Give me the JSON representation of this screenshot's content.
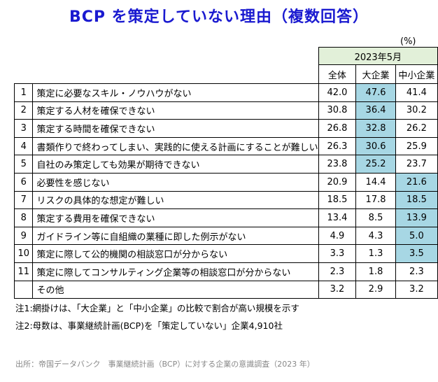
{
  "title": "BCP を策定していない理由（複数回答）",
  "unit": "(%)",
  "period": "2023年5月",
  "columns": [
    "全体",
    "大企業",
    "中小企業"
  ],
  "highlight_color": "#a7d7e4",
  "rows": [
    {
      "no": "1",
      "label": "策定に必要なスキル・ノウハウがない",
      "values": [
        "42.0",
        "47.6",
        "41.4"
      ],
      "highlight": [
        false,
        true,
        false
      ]
    },
    {
      "no": "2",
      "label": "策定する人材を確保できない",
      "values": [
        "30.8",
        "36.4",
        "30.2"
      ],
      "highlight": [
        false,
        true,
        false
      ]
    },
    {
      "no": "3",
      "label": "策定する時間を確保できない",
      "values": [
        "26.8",
        "32.8",
        "26.2"
      ],
      "highlight": [
        false,
        true,
        false
      ]
    },
    {
      "no": "4",
      "label": "書類作りで終わってしまい、実践的に使える計画にすることが難しい",
      "values": [
        "26.3",
        "30.6",
        "25.9"
      ],
      "highlight": [
        false,
        true,
        false
      ]
    },
    {
      "no": "5",
      "label": "自社のみ策定しても効果が期待できない",
      "values": [
        "23.8",
        "25.2",
        "23.7"
      ],
      "highlight": [
        false,
        true,
        false
      ]
    },
    {
      "no": "6",
      "label": "必要性を感じない",
      "values": [
        "20.9",
        "14.4",
        "21.6"
      ],
      "highlight": [
        false,
        false,
        true
      ]
    },
    {
      "no": "7",
      "label": "リスクの具体的な想定が難しい",
      "values": [
        "18.5",
        "17.8",
        "18.5"
      ],
      "highlight": [
        false,
        false,
        true
      ]
    },
    {
      "no": "8",
      "label": "策定する費用を確保できない",
      "values": [
        "13.4",
        "8.5",
        "13.9"
      ],
      "highlight": [
        false,
        false,
        true
      ]
    },
    {
      "no": "9",
      "label": "ガイドライン等に自組織の業種に即した例示がない",
      "values": [
        "4.9",
        "4.3",
        "5.0"
      ],
      "highlight": [
        false,
        false,
        true
      ]
    },
    {
      "no": "10",
      "label": "策定に際して公的機関の相談窓口が分からない",
      "values": [
        "3.3",
        "1.3",
        "3.5"
      ],
      "highlight": [
        false,
        false,
        true
      ]
    },
    {
      "no": "11",
      "label": "策定に際してコンサルティング企業等の相談窓口が分からない",
      "values": [
        "2.3",
        "1.8",
        "2.3"
      ],
      "highlight": [
        false,
        false,
        false
      ]
    },
    {
      "no": "",
      "label": "その他",
      "values": [
        "3.2",
        "2.9",
        "3.2"
      ],
      "highlight": [
        false,
        false,
        false
      ]
    }
  ],
  "notes": [
    "注1:網掛けは、「大企業」と「中小企業」の比較で割合が高い規模を示す",
    "注2:母数は、事業継続計画(BCP)を「策定していない」企業4,910社"
  ],
  "source": "出所：帝国データバンク　事業継続計画（BCP）に対する企業の意識調査（2023 年）"
}
